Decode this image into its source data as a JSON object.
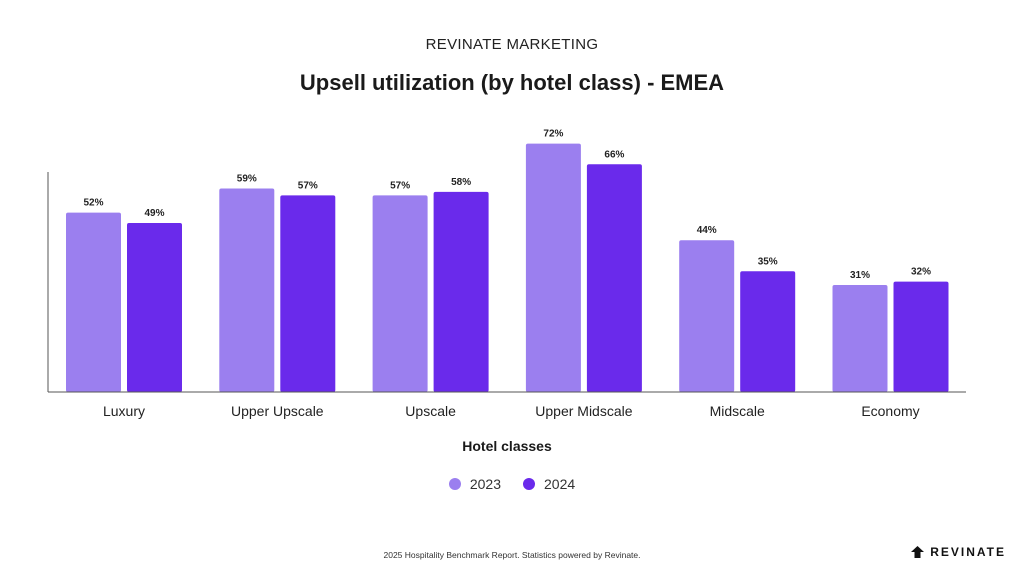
{
  "header": {
    "eyebrow": "REVINATE MARKETING",
    "title": "Upsell utilization (by hotel class) - EMEA"
  },
  "chart_data": {
    "type": "bar",
    "title": "Upsell utilization (by hotel class) - EMEA",
    "xlabel": "Hotel classes",
    "ylabel": "",
    "ylim": [
      0,
      80
    ],
    "grid": false,
    "legend_position": "bottom-center",
    "categories": [
      "Luxury",
      "Upper Upscale",
      "Upscale",
      "Upper Midscale",
      "Midscale",
      "Economy"
    ],
    "series": [
      {
        "name": "2023",
        "color": "#9b7fef",
        "values": [
          52,
          59,
          57,
          72,
          44,
          31
        ],
        "labels": [
          "52%",
          "59%",
          "57%",
          "72%",
          "44%",
          "31%"
        ]
      },
      {
        "name": "2024",
        "color": "#6a2aeb",
        "values": [
          49,
          57,
          58,
          66,
          35,
          32
        ],
        "labels": [
          "49%",
          "57%",
          "58%",
          "66%",
          "35%",
          "32%"
        ]
      }
    ]
  },
  "footer": {
    "source": "2025 Hospitality Benchmark Report. Statistics powered by Revinate.",
    "brand": "REVINATE",
    "brand_icon": "revinate-logo-icon"
  }
}
